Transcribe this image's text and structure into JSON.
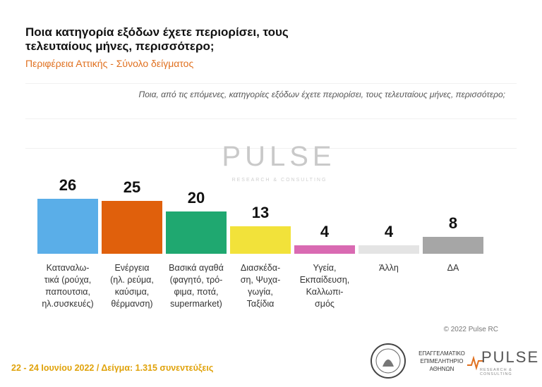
{
  "header": {
    "title": "Ποια κατηγορία εξόδων έχετε περιορίσει, τους τελευταίους μήνες, περισσότερο;",
    "subtitle": "Περιφέρεια Αττικής - Σύνολο δείγματος",
    "question": "Ποια, από τις επόμενες, κατηγορίες εξόδων έχετε περιορίσει, τους τελευταίους μήνες, περισσότερο;"
  },
  "watermark": {
    "text": "PULSE",
    "subtext": "RESEARCH & CONSULTING"
  },
  "chart_data": {
    "type": "bar",
    "categories": [
      [
        "Καταναλω-",
        "τικά (ρούχα,",
        "παπουτσια,",
        "ηλ.συσκευές)"
      ],
      [
        "Ενέργεια",
        "(ηλ. ρεύμα,",
        "καύσιμα,",
        "θέρμανση)"
      ],
      [
        "Βασικά αγαθά",
        "(φαγητό, τρό-",
        "φιμα, ποτά,",
        "supermarket)"
      ],
      [
        "Διασκέδα-",
        "ση, Ψυχα-",
        "γωγία,",
        "Ταξίδια"
      ],
      [
        "Υγεία,",
        "Εκπαίδευση,",
        "Καλλωπι-",
        "σμός"
      ],
      [
        "Άλλη"
      ],
      [
        "ΔΑ"
      ]
    ],
    "values": [
      26,
      25,
      20,
      13,
      4,
      4,
      8
    ],
    "colors": [
      "#5aaee8",
      "#e0600c",
      "#1fa870",
      "#f2e23a",
      "#d96ab2",
      "#e4e4e4",
      "#a6a6a6"
    ],
    "ylim": [
      0,
      30
    ]
  },
  "footer": {
    "copyright": "© 2022 Pulse RC",
    "date_sample": "22 - 24 Ιουνίου 2022 / Δείγμα: 1.315 συνεντεύξεις",
    "chamber": [
      "ΕΠΑΓΓΕΛΜΑΤΙΚΟ",
      "ΕΠΙΜΕΛΗΤΗΡΙΟ",
      "ΑΘΗΝΩΝ"
    ],
    "logo": "PULSE",
    "logo_sub": "RESEARCH & CONSULTING"
  }
}
